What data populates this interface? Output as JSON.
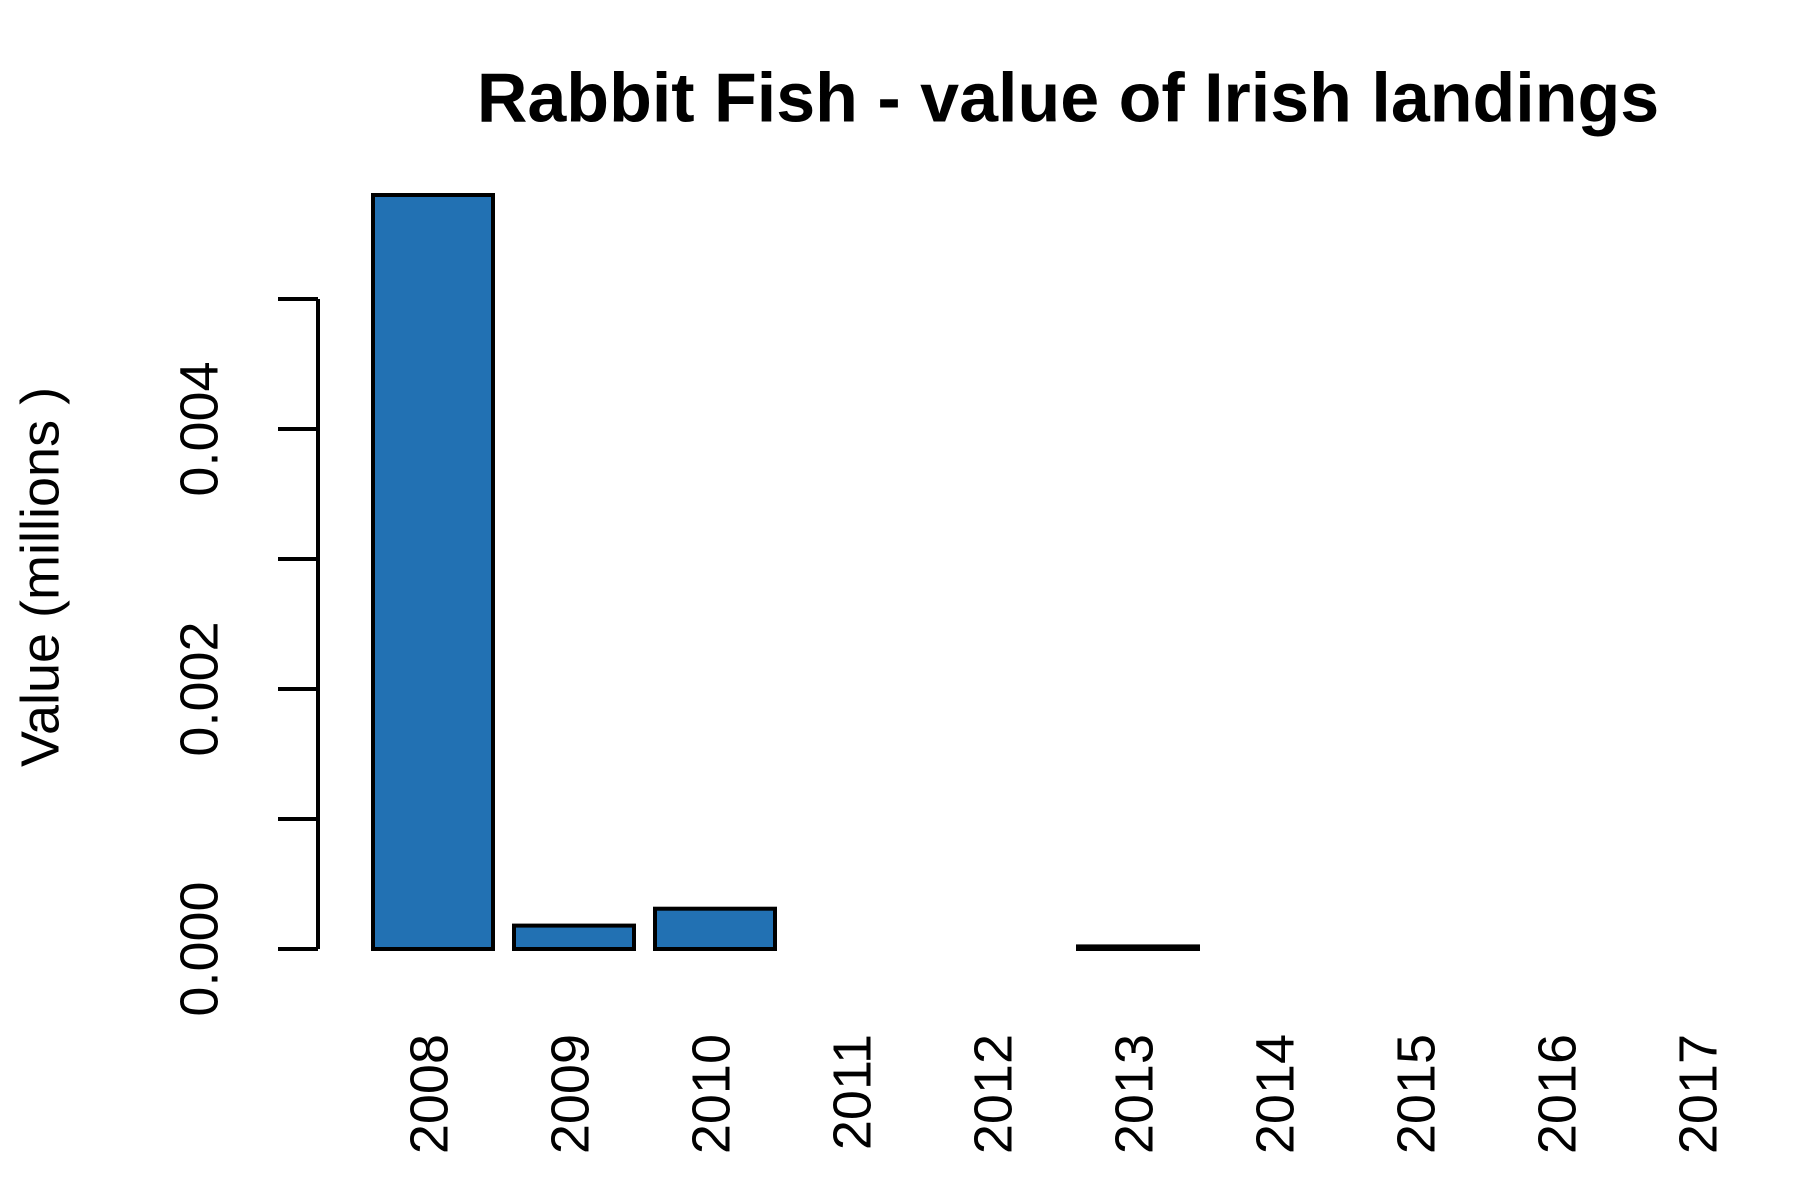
{
  "chart_data": {
    "type": "bar",
    "title": "Rabbit Fish - value of Irish landings",
    "y_label": "Value (millions )",
    "categories": [
      "2008",
      "2009",
      "2010",
      "2011",
      "2012",
      "2013",
      "2014",
      "2015",
      "2016",
      "2017"
    ],
    "values": [
      0.0058,
      0.00018,
      0.00031,
      0,
      0,
      2e-05,
      0,
      0,
      0,
      0
    ],
    "color": "#2271b3",
    "ylim": [
      0,
      0.0058
    ],
    "yticks": [
      {
        "value": 0,
        "label": "0.000"
      },
      {
        "value": 0.002,
        "label": "0.002"
      },
      {
        "value": 0.004,
        "label": "0.004"
      }
    ],
    "yminor_ticks": [
      0.001,
      0.003,
      0.005
    ],
    "grid": false
  }
}
